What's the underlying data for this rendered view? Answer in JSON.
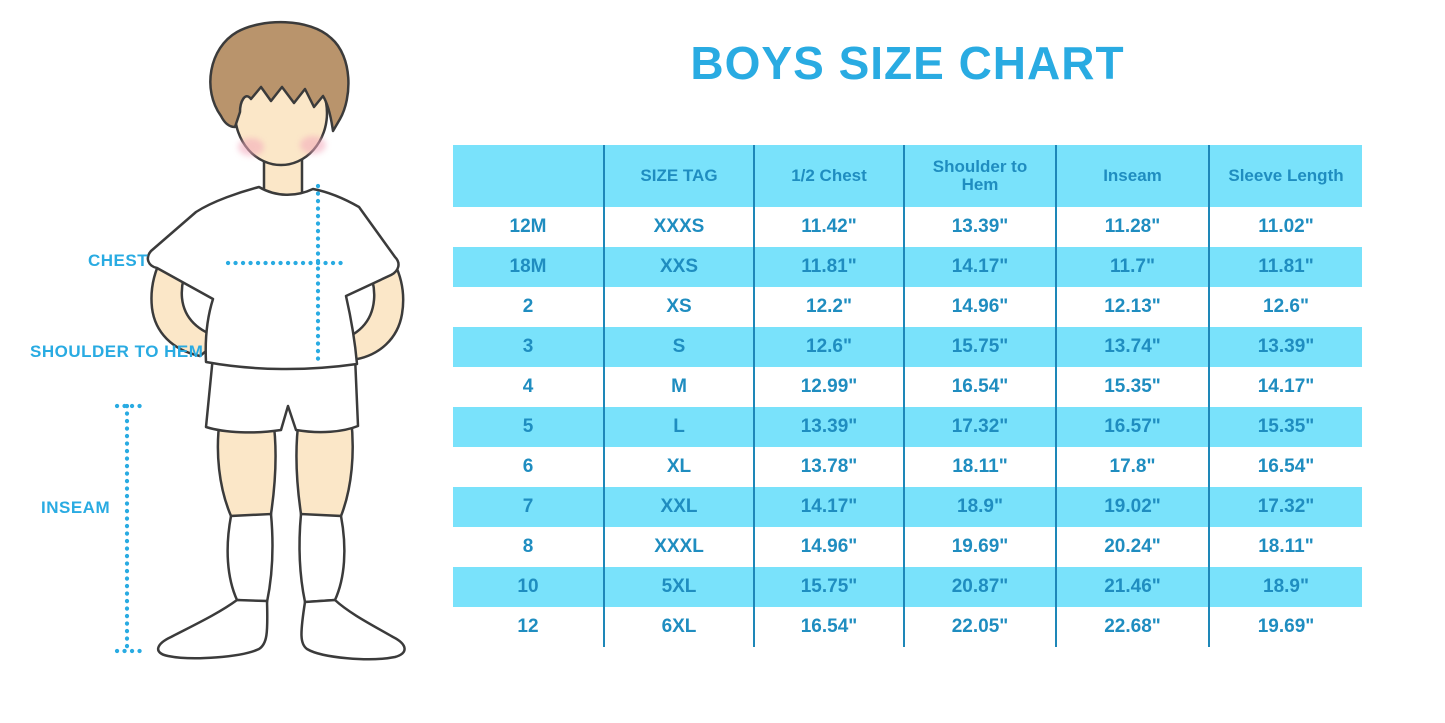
{
  "title": "BOYS SIZE CHART",
  "figure": {
    "labels": {
      "chest": "CHEST",
      "shoulder_to_hem": "SHOULDER TO HEM",
      "inseam": "INSEAM"
    }
  },
  "chart_data": {
    "type": "table",
    "title": "BOYS SIZE CHART",
    "columns": [
      "",
      "SIZE TAG",
      "1/2 Chest",
      "Shoulder to Hem",
      "Inseam",
      "Sleeve Length"
    ],
    "rows": [
      [
        "12M",
        "XXXS",
        "11.42\"",
        "13.39\"",
        "11.28\"",
        "11.02\""
      ],
      [
        "18M",
        "XXS",
        "11.81\"",
        "14.17\"",
        "11.7\"",
        "11.81\""
      ],
      [
        "2",
        "XS",
        "12.2\"",
        "14.96\"",
        "12.13\"",
        "12.6\""
      ],
      [
        "3",
        "S",
        "12.6\"",
        "15.75\"",
        "13.74\"",
        "13.39\""
      ],
      [
        "4",
        "M",
        "12.99\"",
        "16.54\"",
        "15.35\"",
        "14.17\""
      ],
      [
        "5",
        "L",
        "13.39\"",
        "17.32\"",
        "16.57\"",
        "15.35\""
      ],
      [
        "6",
        "XL",
        "13.78\"",
        "18.11\"",
        "17.8\"",
        "16.54\""
      ],
      [
        "7",
        "XXL",
        "14.17\"",
        "18.9\"",
        "19.02\"",
        "17.32\""
      ],
      [
        "8",
        "XXXL",
        "14.96\"",
        "19.69\"",
        "20.24\"",
        "18.11\""
      ],
      [
        "10",
        "5XL",
        "15.75\"",
        "20.87\"",
        "21.46\"",
        "18.9\""
      ],
      [
        "12",
        "6XL",
        "16.54\"",
        "22.05\"",
        "22.68\"",
        "19.69\""
      ]
    ],
    "layout": {
      "row_striping": [
        "white",
        "#79E2FB"
      ],
      "header_fill": "#79E2FB",
      "grid": "vertical-only"
    }
  },
  "colors": {
    "accent_blue": "#29ABE2",
    "table_fill": "#79E2FB",
    "table_text": "#1F8DC0",
    "divider": "#1E87B8",
    "skin": "#FBE7C8",
    "hair": "#B9946C",
    "outline": "#3B3B3B",
    "blush": "#F3A8BB"
  }
}
